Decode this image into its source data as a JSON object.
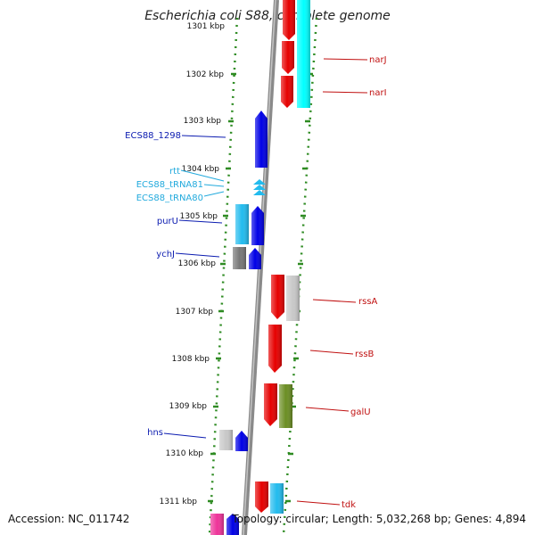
{
  "title": "Escherichia coli S88, complete genome",
  "accession": "Accession: NC_011742",
  "topology": "Topology: circular; Length: 5,032,268 bp; Genes: 4,894",
  "ticks": [
    "1301 kbp",
    "1302 kbp",
    "1303 kbp",
    "1304 kbp",
    "1305 kbp",
    "1306 kbp",
    "1307 kbp",
    "1308 kbp",
    "1309 kbp",
    "1310 kbp",
    "1311 kbp"
  ],
  "genes_left": [
    "ECS88_1298",
    "rtt",
    "ECS88_tRNA81",
    "ECS88_tRNA80",
    "purU",
    "ychJ",
    "hns"
  ],
  "genes_right": [
    "narJ",
    "narI",
    "rssA",
    "rssB",
    "galU",
    "tdk"
  ],
  "colors": {
    "red": "#e60000",
    "blue": "#0000e6",
    "cyan": "#00ffff",
    "sky": "#22bbee",
    "grey": "#777777",
    "lightgrey": "#c8c8c8",
    "olive": "#6b8e23",
    "magenta": "#ee3399",
    "dotted_guide": "#2e8b22",
    "left_label": "#0b1bb0",
    "trna_label": "#22aadd",
    "right_label": "#c01010"
  }
}
